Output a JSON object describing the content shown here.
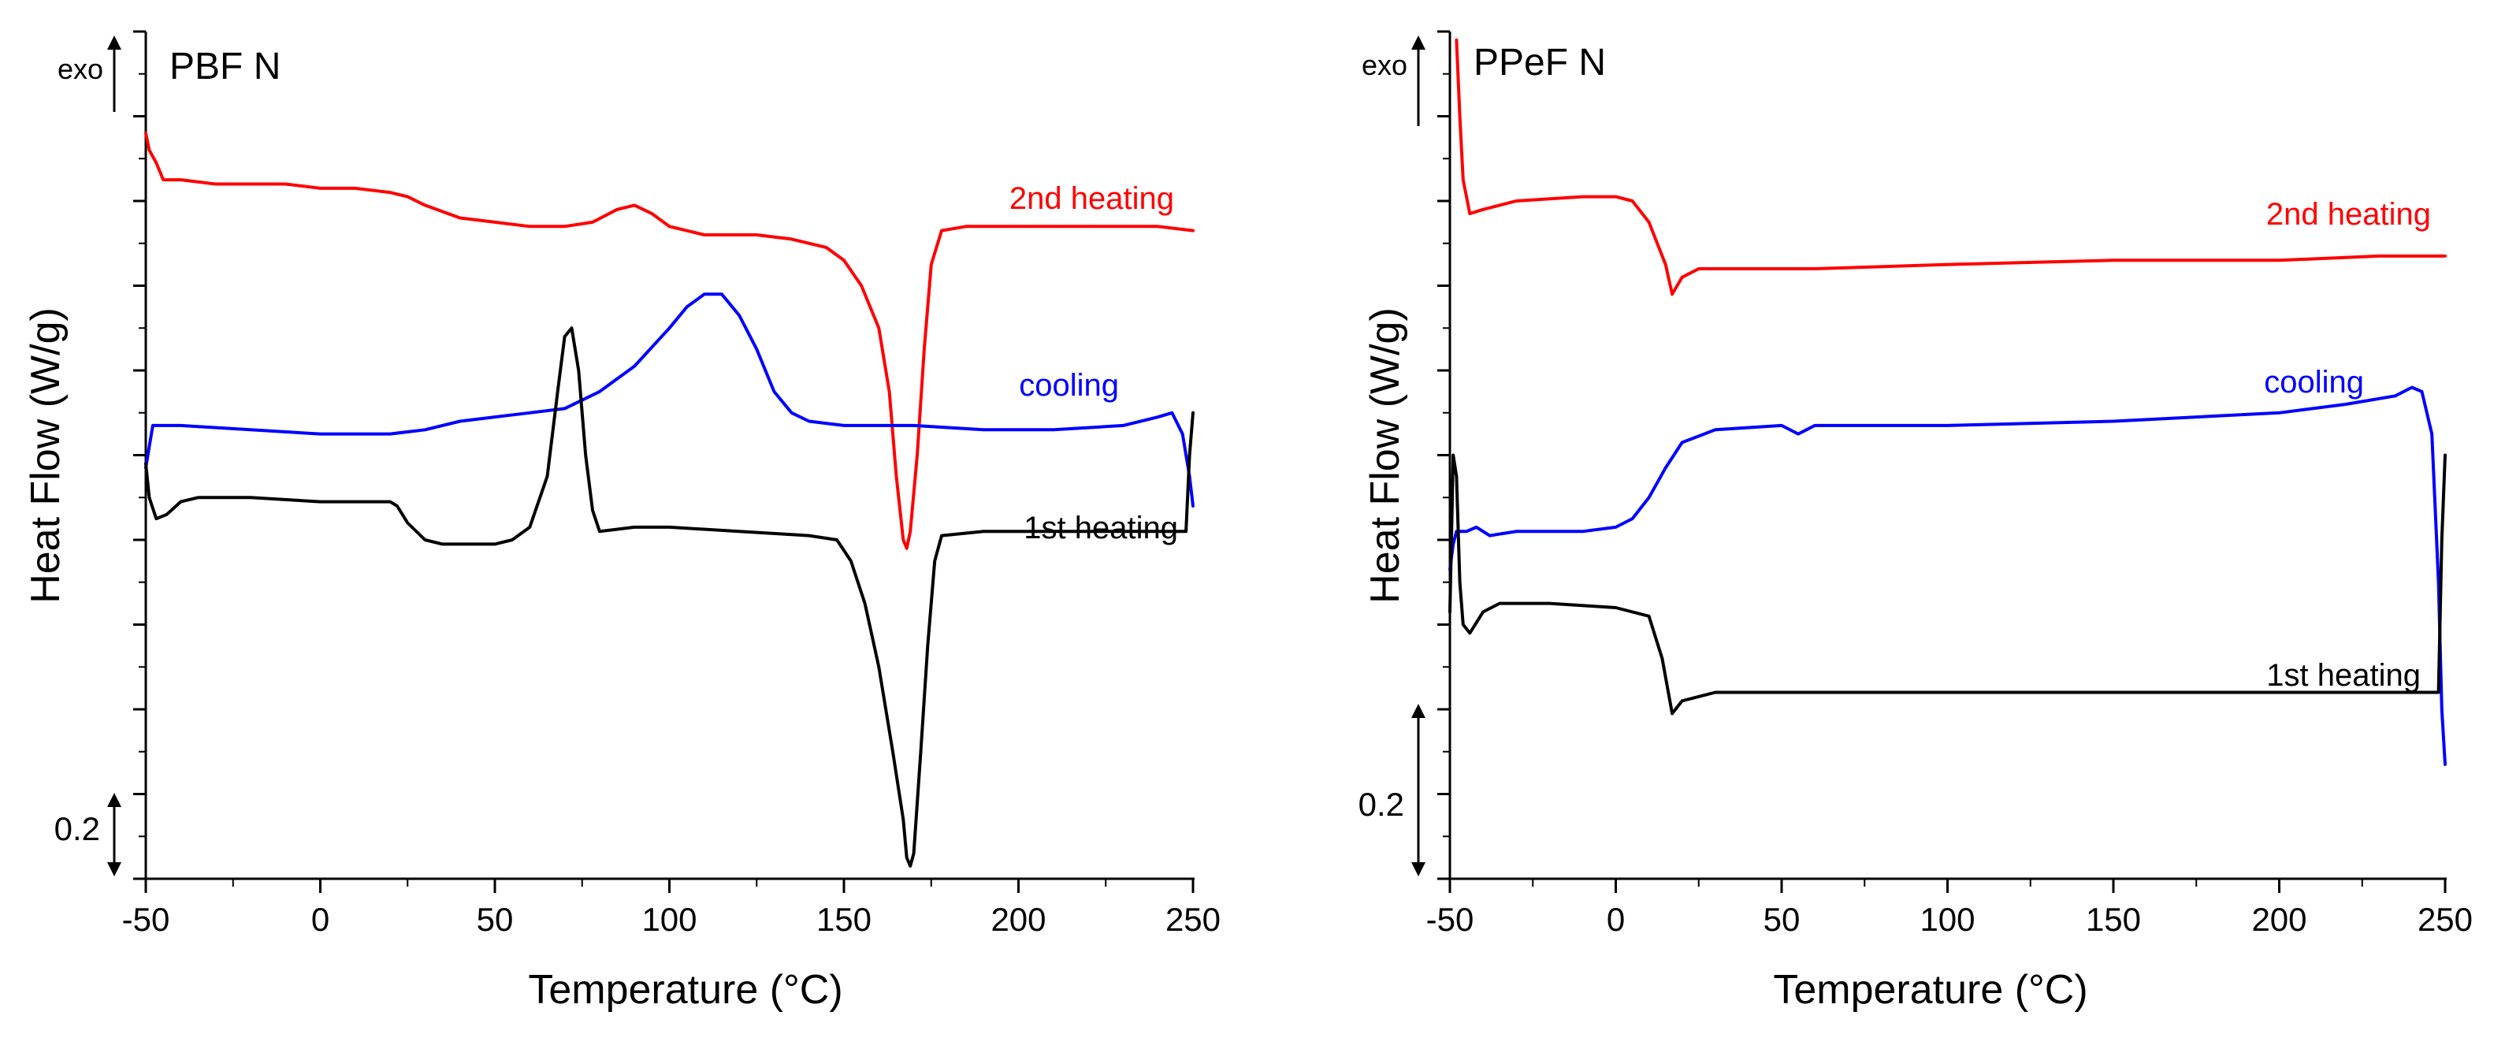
{
  "figure": {
    "xlabel": "Temperature (°C)",
    "ylabel": "Heat Flow (W/g)",
    "exo_label": "exo",
    "scale_bar_label": "0.2"
  },
  "colors": {
    "heating2": "#ff0000",
    "cooling": "#0000ff",
    "heating1": "#000000"
  },
  "chart_data": [
    {
      "type": "line",
      "title": "PBF N",
      "xlabel": "Temperature (°C)",
      "ylabel": "Heat Flow (W/g)",
      "xlim": [
        -50,
        250
      ],
      "x_ticks": [
        "-50",
        "0",
        "50",
        "100",
        "150",
        "200",
        "250"
      ],
      "ylim": [
        0,
        2.0
      ],
      "scale_bar": 0.2,
      "series": [
        {
          "name": "2nd heating",
          "color": "#ff0000",
          "points": [
            [
              -50,
              1.76
            ],
            [
              -49,
              1.72
            ],
            [
              -47,
              1.69
            ],
            [
              -45,
              1.65
            ],
            [
              -40,
              1.65
            ],
            [
              -30,
              1.64
            ],
            [
              -10,
              1.64
            ],
            [
              0,
              1.63
            ],
            [
              10,
              1.63
            ],
            [
              20,
              1.62
            ],
            [
              25,
              1.61
            ],
            [
              30,
              1.59
            ],
            [
              40,
              1.56
            ],
            [
              50,
              1.55
            ],
            [
              60,
              1.54
            ],
            [
              70,
              1.54
            ],
            [
              78,
              1.55
            ],
            [
              85,
              1.58
            ],
            [
              90,
              1.59
            ],
            [
              95,
              1.57
            ],
            [
              100,
              1.54
            ],
            [
              110,
              1.52
            ],
            [
              125,
              1.52
            ],
            [
              135,
              1.51
            ],
            [
              145,
              1.49
            ],
            [
              150,
              1.46
            ],
            [
              155,
              1.4
            ],
            [
              160,
              1.3
            ],
            [
              163,
              1.15
            ],
            [
              165,
              0.95
            ],
            [
              167,
              0.8
            ],
            [
              168,
              0.78
            ],
            [
              169,
              0.82
            ],
            [
              171,
              1.0
            ],
            [
              173,
              1.25
            ],
            [
              175,
              1.45
            ],
            [
              178,
              1.53
            ],
            [
              185,
              1.54
            ],
            [
              200,
              1.54
            ],
            [
              220,
              1.54
            ],
            [
              240,
              1.54
            ],
            [
              250,
              1.53
            ]
          ]
        },
        {
          "name": "cooling",
          "color": "#0000ff",
          "points": [
            [
              -50,
              0.97
            ],
            [
              -49,
              1.02
            ],
            [
              -48,
              1.07
            ],
            [
              -40,
              1.07
            ],
            [
              -20,
              1.06
            ],
            [
              0,
              1.05
            ],
            [
              20,
              1.05
            ],
            [
              30,
              1.06
            ],
            [
              40,
              1.08
            ],
            [
              50,
              1.09
            ],
            [
              60,
              1.1
            ],
            [
              70,
              1.11
            ],
            [
              80,
              1.15
            ],
            [
              90,
              1.21
            ],
            [
              100,
              1.3
            ],
            [
              105,
              1.35
            ],
            [
              110,
              1.38
            ],
            [
              115,
              1.38
            ],
            [
              120,
              1.33
            ],
            [
              125,
              1.25
            ],
            [
              130,
              1.15
            ],
            [
              135,
              1.1
            ],
            [
              140,
              1.08
            ],
            [
              150,
              1.07
            ],
            [
              170,
              1.07
            ],
            [
              190,
              1.06
            ],
            [
              210,
              1.06
            ],
            [
              230,
              1.07
            ],
            [
              240,
              1.09
            ],
            [
              244,
              1.1
            ],
            [
              247,
              1.05
            ],
            [
              249,
              0.95
            ],
            [
              250,
              0.88
            ]
          ]
        },
        {
          "name": "1st heating",
          "color": "#000000",
          "points": [
            [
              -50,
              0.98
            ],
            [
              -49,
              0.9
            ],
            [
              -47,
              0.85
            ],
            [
              -44,
              0.86
            ],
            [
              -40,
              0.89
            ],
            [
              -35,
              0.9
            ],
            [
              -20,
              0.9
            ],
            [
              0,
              0.89
            ],
            [
              20,
              0.89
            ],
            [
              22,
              0.88
            ],
            [
              25,
              0.84
            ],
            [
              30,
              0.8
            ],
            [
              35,
              0.79
            ],
            [
              45,
              0.79
            ],
            [
              50,
              0.79
            ],
            [
              55,
              0.8
            ],
            [
              60,
              0.83
            ],
            [
              65,
              0.95
            ],
            [
              68,
              1.15
            ],
            [
              70,
              1.28
            ],
            [
              72,
              1.3
            ],
            [
              74,
              1.2
            ],
            [
              76,
              1.0
            ],
            [
              78,
              0.87
            ],
            [
              80,
              0.82
            ],
            [
              90,
              0.83
            ],
            [
              100,
              0.83
            ],
            [
              120,
              0.82
            ],
            [
              140,
              0.81
            ],
            [
              148,
              0.8
            ],
            [
              152,
              0.75
            ],
            [
              156,
              0.65
            ],
            [
              160,
              0.5
            ],
            [
              164,
              0.3
            ],
            [
              167,
              0.14
            ],
            [
              168,
              0.05
            ],
            [
              169,
              0.03
            ],
            [
              170,
              0.06
            ],
            [
              172,
              0.3
            ],
            [
              174,
              0.55
            ],
            [
              176,
              0.75
            ],
            [
              178,
              0.81
            ],
            [
              190,
              0.82
            ],
            [
              220,
              0.82
            ],
            [
              248,
              0.82
            ],
            [
              249,
              1.0
            ],
            [
              250,
              1.1
            ]
          ]
        }
      ]
    },
    {
      "type": "line",
      "title": "PPeF N",
      "xlabel": "Temperature (°C)",
      "ylabel": "Heat Flow (W/g)",
      "xlim": [
        -50,
        250
      ],
      "x_ticks": [
        "-50",
        "0",
        "50",
        "100",
        "150",
        "200",
        "250"
      ],
      "ylim": [
        0,
        2.0
      ],
      "scale_bar": 0.2,
      "series": [
        {
          "name": "2nd heating",
          "color": "#ff0000",
          "points": [
            [
              -48,
              1.98
            ],
            [
              -47,
              1.8
            ],
            [
              -46,
              1.65
            ],
            [
              -44,
              1.57
            ],
            [
              -40,
              1.58
            ],
            [
              -30,
              1.6
            ],
            [
              -10,
              1.61
            ],
            [
              0,
              1.61
            ],
            [
              5,
              1.6
            ],
            [
              10,
              1.55
            ],
            [
              15,
              1.45
            ],
            [
              17,
              1.38
            ],
            [
              20,
              1.42
            ],
            [
              25,
              1.44
            ],
            [
              40,
              1.44
            ],
            [
              60,
              1.44
            ],
            [
              100,
              1.45
            ],
            [
              150,
              1.46
            ],
            [
              200,
              1.46
            ],
            [
              230,
              1.47
            ],
            [
              250,
              1.47
            ]
          ]
        },
        {
          "name": "cooling",
          "color": "#0000ff",
          "points": [
            [
              -50,
              0.73
            ],
            [
              -49,
              0.79
            ],
            [
              -48,
              0.82
            ],
            [
              -45,
              0.82
            ],
            [
              -42,
              0.83
            ],
            [
              -38,
              0.81
            ],
            [
              -30,
              0.82
            ],
            [
              -10,
              0.82
            ],
            [
              0,
              0.83
            ],
            [
              5,
              0.85
            ],
            [
              10,
              0.9
            ],
            [
              15,
              0.97
            ],
            [
              20,
              1.03
            ],
            [
              30,
              1.06
            ],
            [
              50,
              1.07
            ],
            [
              55,
              1.05
            ],
            [
              60,
              1.07
            ],
            [
              100,
              1.07
            ],
            [
              150,
              1.08
            ],
            [
              200,
              1.1
            ],
            [
              220,
              1.12
            ],
            [
              235,
              1.14
            ],
            [
              240,
              1.16
            ],
            [
              243,
              1.15
            ],
            [
              246,
              1.05
            ],
            [
              248,
              0.7
            ],
            [
              249,
              0.4
            ],
            [
              250,
              0.27
            ]
          ]
        },
        {
          "name": "1st heating",
          "color": "#000000",
          "points": [
            [
              -50,
              0.63
            ],
            [
              -49,
              1.0
            ],
            [
              -48,
              0.95
            ],
            [
              -47,
              0.7
            ],
            [
              -46,
              0.6
            ],
            [
              -44,
              0.58
            ],
            [
              -40,
              0.63
            ],
            [
              -35,
              0.65
            ],
            [
              -20,
              0.65
            ],
            [
              0,
              0.64
            ],
            [
              10,
              0.62
            ],
            [
              14,
              0.52
            ],
            [
              17,
              0.39
            ],
            [
              20,
              0.42
            ],
            [
              30,
              0.44
            ],
            [
              50,
              0.44
            ],
            [
              100,
              0.44
            ],
            [
              150,
              0.44
            ],
            [
              200,
              0.44
            ],
            [
              240,
              0.44
            ],
            [
              248,
              0.44
            ],
            [
              249,
              0.8
            ],
            [
              250,
              1.0
            ]
          ]
        }
      ]
    }
  ]
}
